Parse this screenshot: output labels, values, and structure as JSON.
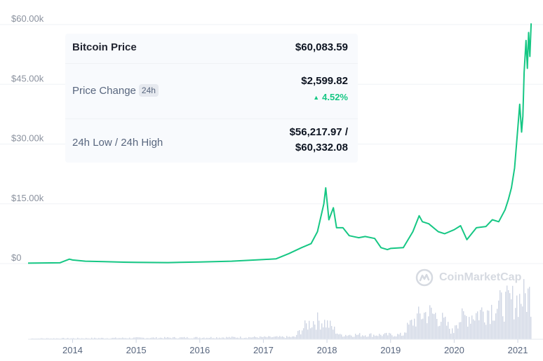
{
  "chart_data": {
    "type": "line",
    "title": "",
    "series": [
      {
        "name": "",
        "x": [
          2013.3,
          2013.8,
          2013.95,
          2014.0,
          2014.2,
          2014.5,
          2014.8,
          2015.0,
          2015.5,
          2016.0,
          2016.5,
          2017.0,
          2017.2,
          2017.4,
          2017.6,
          2017.75,
          2017.85,
          2017.95,
          2017.98,
          2018.03,
          2018.1,
          2018.15,
          2018.25,
          2018.35,
          2018.5,
          2018.6,
          2018.75,
          2018.85,
          2018.95,
          2019.0,
          2019.2,
          2019.35,
          2019.45,
          2019.5,
          2019.6,
          2019.75,
          2019.85,
          2020.0,
          2020.1,
          2020.2,
          2020.35,
          2020.5,
          2020.6,
          2020.7,
          2020.8,
          2020.85,
          2020.9,
          2020.95,
          2021.0,
          2021.03,
          2021.06,
          2021.08,
          2021.1,
          2021.13,
          2021.15,
          2021.17,
          2021.19,
          2021.21
        ],
        "y": [
          100,
          200,
          1100,
          900,
          600,
          500,
          350,
          300,
          250,
          400,
          600,
          1000,
          1200,
          2500,
          4000,
          5000,
          8000,
          15000,
          19000,
          11000,
          14000,
          9000,
          9000,
          7000,
          6500,
          6800,
          6300,
          4000,
          3500,
          3800,
          4000,
          8000,
          12000,
          10500,
          10000,
          8000,
          7500,
          8500,
          9500,
          6000,
          9000,
          9300,
          11000,
          10500,
          13500,
          16000,
          19000,
          24000,
          34000,
          40000,
          33000,
          37000,
          48000,
          56000,
          49000,
          58000,
          52000,
          60300
        ]
      }
    ],
    "volume": {
      "x_start": 2013.3,
      "x_end": 2021.21,
      "note_shape": "relative daily volume bars, increasing over time"
    },
    "xlim": [
      2013.3,
      2021.22
    ],
    "ylim": [
      0,
      60000
    ],
    "y_ticks": [
      0,
      15000,
      30000,
      45000,
      60000
    ],
    "y_tick_labels": [
      "$0",
      "$15.00k",
      "$30.00k",
      "$45.00k",
      "$60.00k"
    ],
    "x_ticks": [
      2014,
      2015,
      2016,
      2017,
      2018,
      2019,
      2020,
      2021
    ],
    "x_tick_labels": [
      "2014",
      "2015",
      "2016",
      "2017",
      "2018",
      "2019",
      "2020",
      "2021"
    ],
    "grid": true,
    "line_color": "#16c784",
    "volume_color": "#cfd6e4"
  },
  "tooltip": {
    "row1_label": "Bitcoin Price",
    "row1_value": "$60,083.59",
    "row2_label": "Price Change",
    "row2_badge": "24h",
    "row2_value": "$2,599.82",
    "row2_change": "4.52%",
    "row3_label": "24h Low / 24h High",
    "row3_value_line1": "$56,217.97 /",
    "row3_value_line2": "$60,332.08"
  },
  "watermark": {
    "text": "CoinMarketCap",
    "icon": "coinmarketcap-logo-icon"
  }
}
